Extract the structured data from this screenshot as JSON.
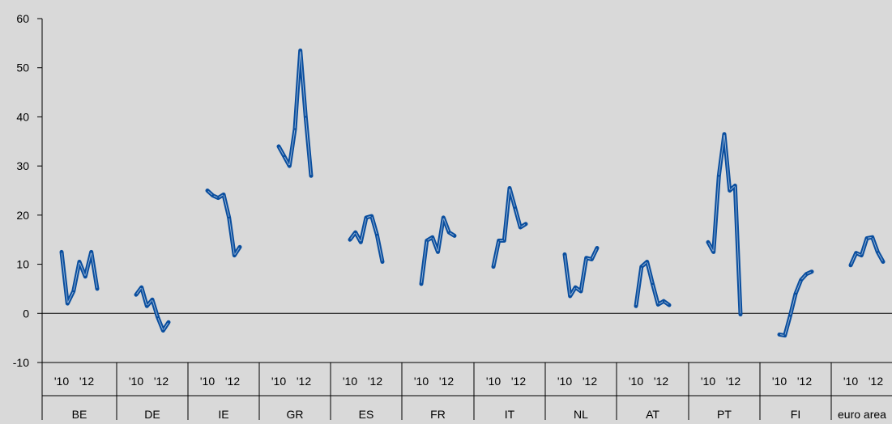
{
  "chart_data": {
    "type": "line",
    "title": "",
    "xlabel": "",
    "ylabel": "",
    "ylim": [
      -10,
      60
    ],
    "yticks": [
      -10,
      0,
      10,
      20,
      30,
      40,
      50,
      60
    ],
    "grid": false,
    "legend": "none",
    "colors": {
      "background": "#d9d9d9",
      "line": "#0a4e9e",
      "line_highlight": "#ffffff",
      "axis": "#000000"
    },
    "year_tick_labels": [
      "'10",
      "'12"
    ],
    "groups": [
      {
        "name": "BE",
        "values": [
          12.5,
          2.0,
          4.5,
          10.5,
          7.5,
          12.5,
          5.0
        ]
      },
      {
        "name": "DE",
        "values": [
          3.8,
          5.3,
          1.5,
          2.8,
          -0.8,
          -3.5,
          -1.8
        ]
      },
      {
        "name": "IE",
        "values": [
          25.0,
          24.0,
          23.5,
          24.2,
          19.5,
          11.8,
          13.5
        ]
      },
      {
        "name": "GR",
        "values": [
          34.0,
          32.0,
          30.0,
          37.5,
          53.5,
          40.0,
          28.0
        ]
      },
      {
        "name": "ES",
        "values": [
          15.0,
          16.5,
          14.5,
          19.5,
          19.8,
          16.0,
          10.5
        ]
      },
      {
        "name": "FR",
        "values": [
          6.0,
          14.8,
          15.5,
          12.5,
          19.5,
          16.5,
          15.8
        ]
      },
      {
        "name": "IT",
        "values": [
          9.5,
          14.8,
          14.8,
          25.5,
          21.5,
          17.5,
          18.2
        ]
      },
      {
        "name": "NL",
        "values": [
          12.0,
          3.5,
          5.3,
          4.5,
          11.3,
          11.0,
          13.3
        ]
      },
      {
        "name": "AT",
        "values": [
          1.5,
          9.5,
          10.5,
          6.0,
          1.8,
          2.5,
          1.7
        ]
      },
      {
        "name": "PT",
        "values": [
          14.5,
          12.5,
          28.0,
          36.5,
          25.0,
          26.0,
          -0.2
        ]
      },
      {
        "name": "FI",
        "values": [
          -4.3,
          -4.5,
          -0.5,
          4.0,
          6.8,
          8.0,
          8.5
        ]
      },
      {
        "name": "euro area",
        "values": [
          9.8,
          12.3,
          11.8,
          15.3,
          15.5,
          12.5,
          10.5
        ]
      }
    ]
  }
}
